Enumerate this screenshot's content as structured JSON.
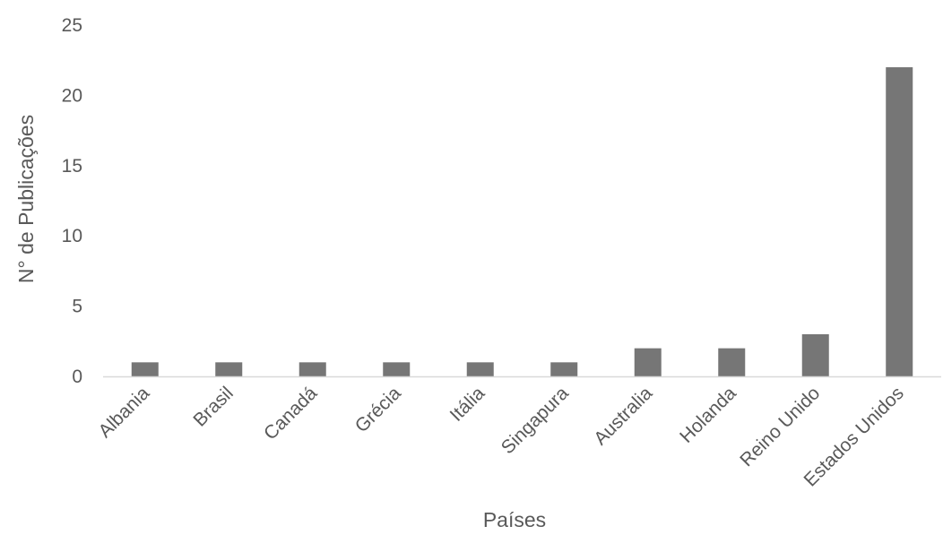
{
  "chart_data": {
    "type": "bar",
    "title": "",
    "xlabel": "Países",
    "ylabel": "N° de Publicações",
    "categories": [
      "Albania",
      "Brasil",
      "Canadá",
      "Grécia",
      "Itália",
      "Singapura",
      "Australia",
      "Holanda",
      "Reino Unido",
      "Estados Unidos"
    ],
    "values": [
      1,
      1,
      1,
      1,
      1,
      1,
      2,
      2,
      3,
      22
    ],
    "ylim": [
      0,
      25
    ],
    "yticks": [
      "0",
      "5",
      "10",
      "15",
      "20",
      "25"
    ],
    "grid": false,
    "legend": "none",
    "colors": {
      "bar": "#767676",
      "axis": "#d9d9d9",
      "text": "#595959"
    }
  }
}
